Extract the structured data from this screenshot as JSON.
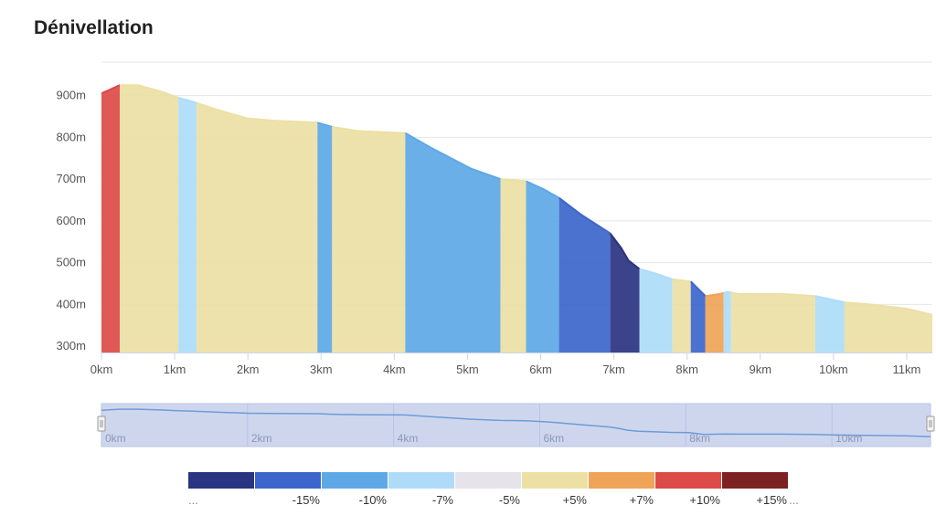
{
  "page": {
    "title": "Dénivellation"
  },
  "chart_data": {
    "type": "area",
    "title": "Dénivellation",
    "xlabel": "",
    "ylabel": "",
    "x_unit": "km",
    "y_unit": "m",
    "xlim": [
      0,
      11.35
    ],
    "ylim": [
      285,
      980
    ],
    "x_ticks": [
      "0km",
      "1km",
      "2km",
      "3km",
      "4km",
      "5km",
      "6km",
      "7km",
      "8km",
      "9km",
      "10km",
      "11km"
    ],
    "y_ticks": [
      "300m",
      "400m",
      "500m",
      "600m",
      "700m",
      "800m",
      "900m"
    ],
    "grid": true,
    "profile": {
      "x": [
        0,
        0.25,
        0.5,
        0.8,
        1.05,
        1.25,
        1.6,
        2.0,
        2.35,
        2.95,
        3.15,
        3.5,
        4.15,
        4.5,
        5.05,
        5.45,
        5.8,
        6.05,
        6.25,
        6.55,
        6.95,
        7.1,
        7.2,
        7.35,
        7.55,
        7.8,
        8.05,
        8.25,
        8.45,
        8.55,
        8.7,
        9.3,
        9.75,
        10.15,
        10.5,
        11.0,
        11.35
      ],
      "y": [
        905,
        925,
        925,
        910,
        895,
        885,
        865,
        845,
        840,
        835,
        825,
        815,
        810,
        775,
        725,
        700,
        695,
        675,
        655,
        615,
        570,
        535,
        505,
        485,
        475,
        460,
        455,
        420,
        425,
        430,
        425,
        425,
        420,
        405,
        400,
        390,
        375
      ]
    },
    "segments": [
      {
        "from": 0,
        "to": 0.25,
        "class": "+10%"
      },
      {
        "from": 0.25,
        "to": 1.05,
        "class": "+5%"
      },
      {
        "from": 1.05,
        "to": 1.3,
        "class": "-7%"
      },
      {
        "from": 1.3,
        "to": 2.95,
        "class": "+5%"
      },
      {
        "from": 2.95,
        "to": 3.15,
        "class": "-10%"
      },
      {
        "from": 3.15,
        "to": 4.15,
        "class": "+5%"
      },
      {
        "from": 4.15,
        "to": 5.45,
        "class": "-10%"
      },
      {
        "from": 5.45,
        "to": 5.8,
        "class": "+5%"
      },
      {
        "from": 5.8,
        "to": 6.25,
        "class": "-10%"
      },
      {
        "from": 6.25,
        "to": 6.95,
        "class": "-15%"
      },
      {
        "from": 6.95,
        "to": 7.35,
        "class": "..."
      },
      {
        "from": 7.35,
        "to": 7.8,
        "class": "-7%"
      },
      {
        "from": 7.8,
        "to": 8.05,
        "class": "+5%"
      },
      {
        "from": 8.05,
        "to": 8.25,
        "class": "-15%"
      },
      {
        "from": 8.25,
        "to": 8.5,
        "class": "+7%"
      },
      {
        "from": 8.5,
        "to": 8.6,
        "class": "-7%"
      },
      {
        "from": 8.6,
        "to": 9.75,
        "class": "+5%"
      },
      {
        "from": 9.75,
        "to": 10.15,
        "class": "-7%"
      },
      {
        "from": 10.15,
        "to": 11.35,
        "class": "+5%"
      }
    ],
    "legend": [
      {
        "label": "...",
        "color": "#2a3480"
      },
      {
        "label": "-15%",
        "color": "#3d66cc"
      },
      {
        "label": "-10%",
        "color": "#5ea8e6"
      },
      {
        "label": "-7%",
        "color": "#aedcf8"
      },
      {
        "label": "-5%",
        "color": "#e7e3ea"
      },
      {
        "label": "+5%",
        "color": "#ece0a4"
      },
      {
        "label": "+7%",
        "color": "#efa458"
      },
      {
        "label": "+10%",
        "color": "#dc4b48"
      },
      {
        "label": "+15%",
        "color": "#7d2222"
      },
      {
        "label": "...",
        "color": ""
      }
    ]
  },
  "navigator": {
    "x_ticks": [
      "0km",
      "2km",
      "4km",
      "6km",
      "8km",
      "10km"
    ]
  }
}
